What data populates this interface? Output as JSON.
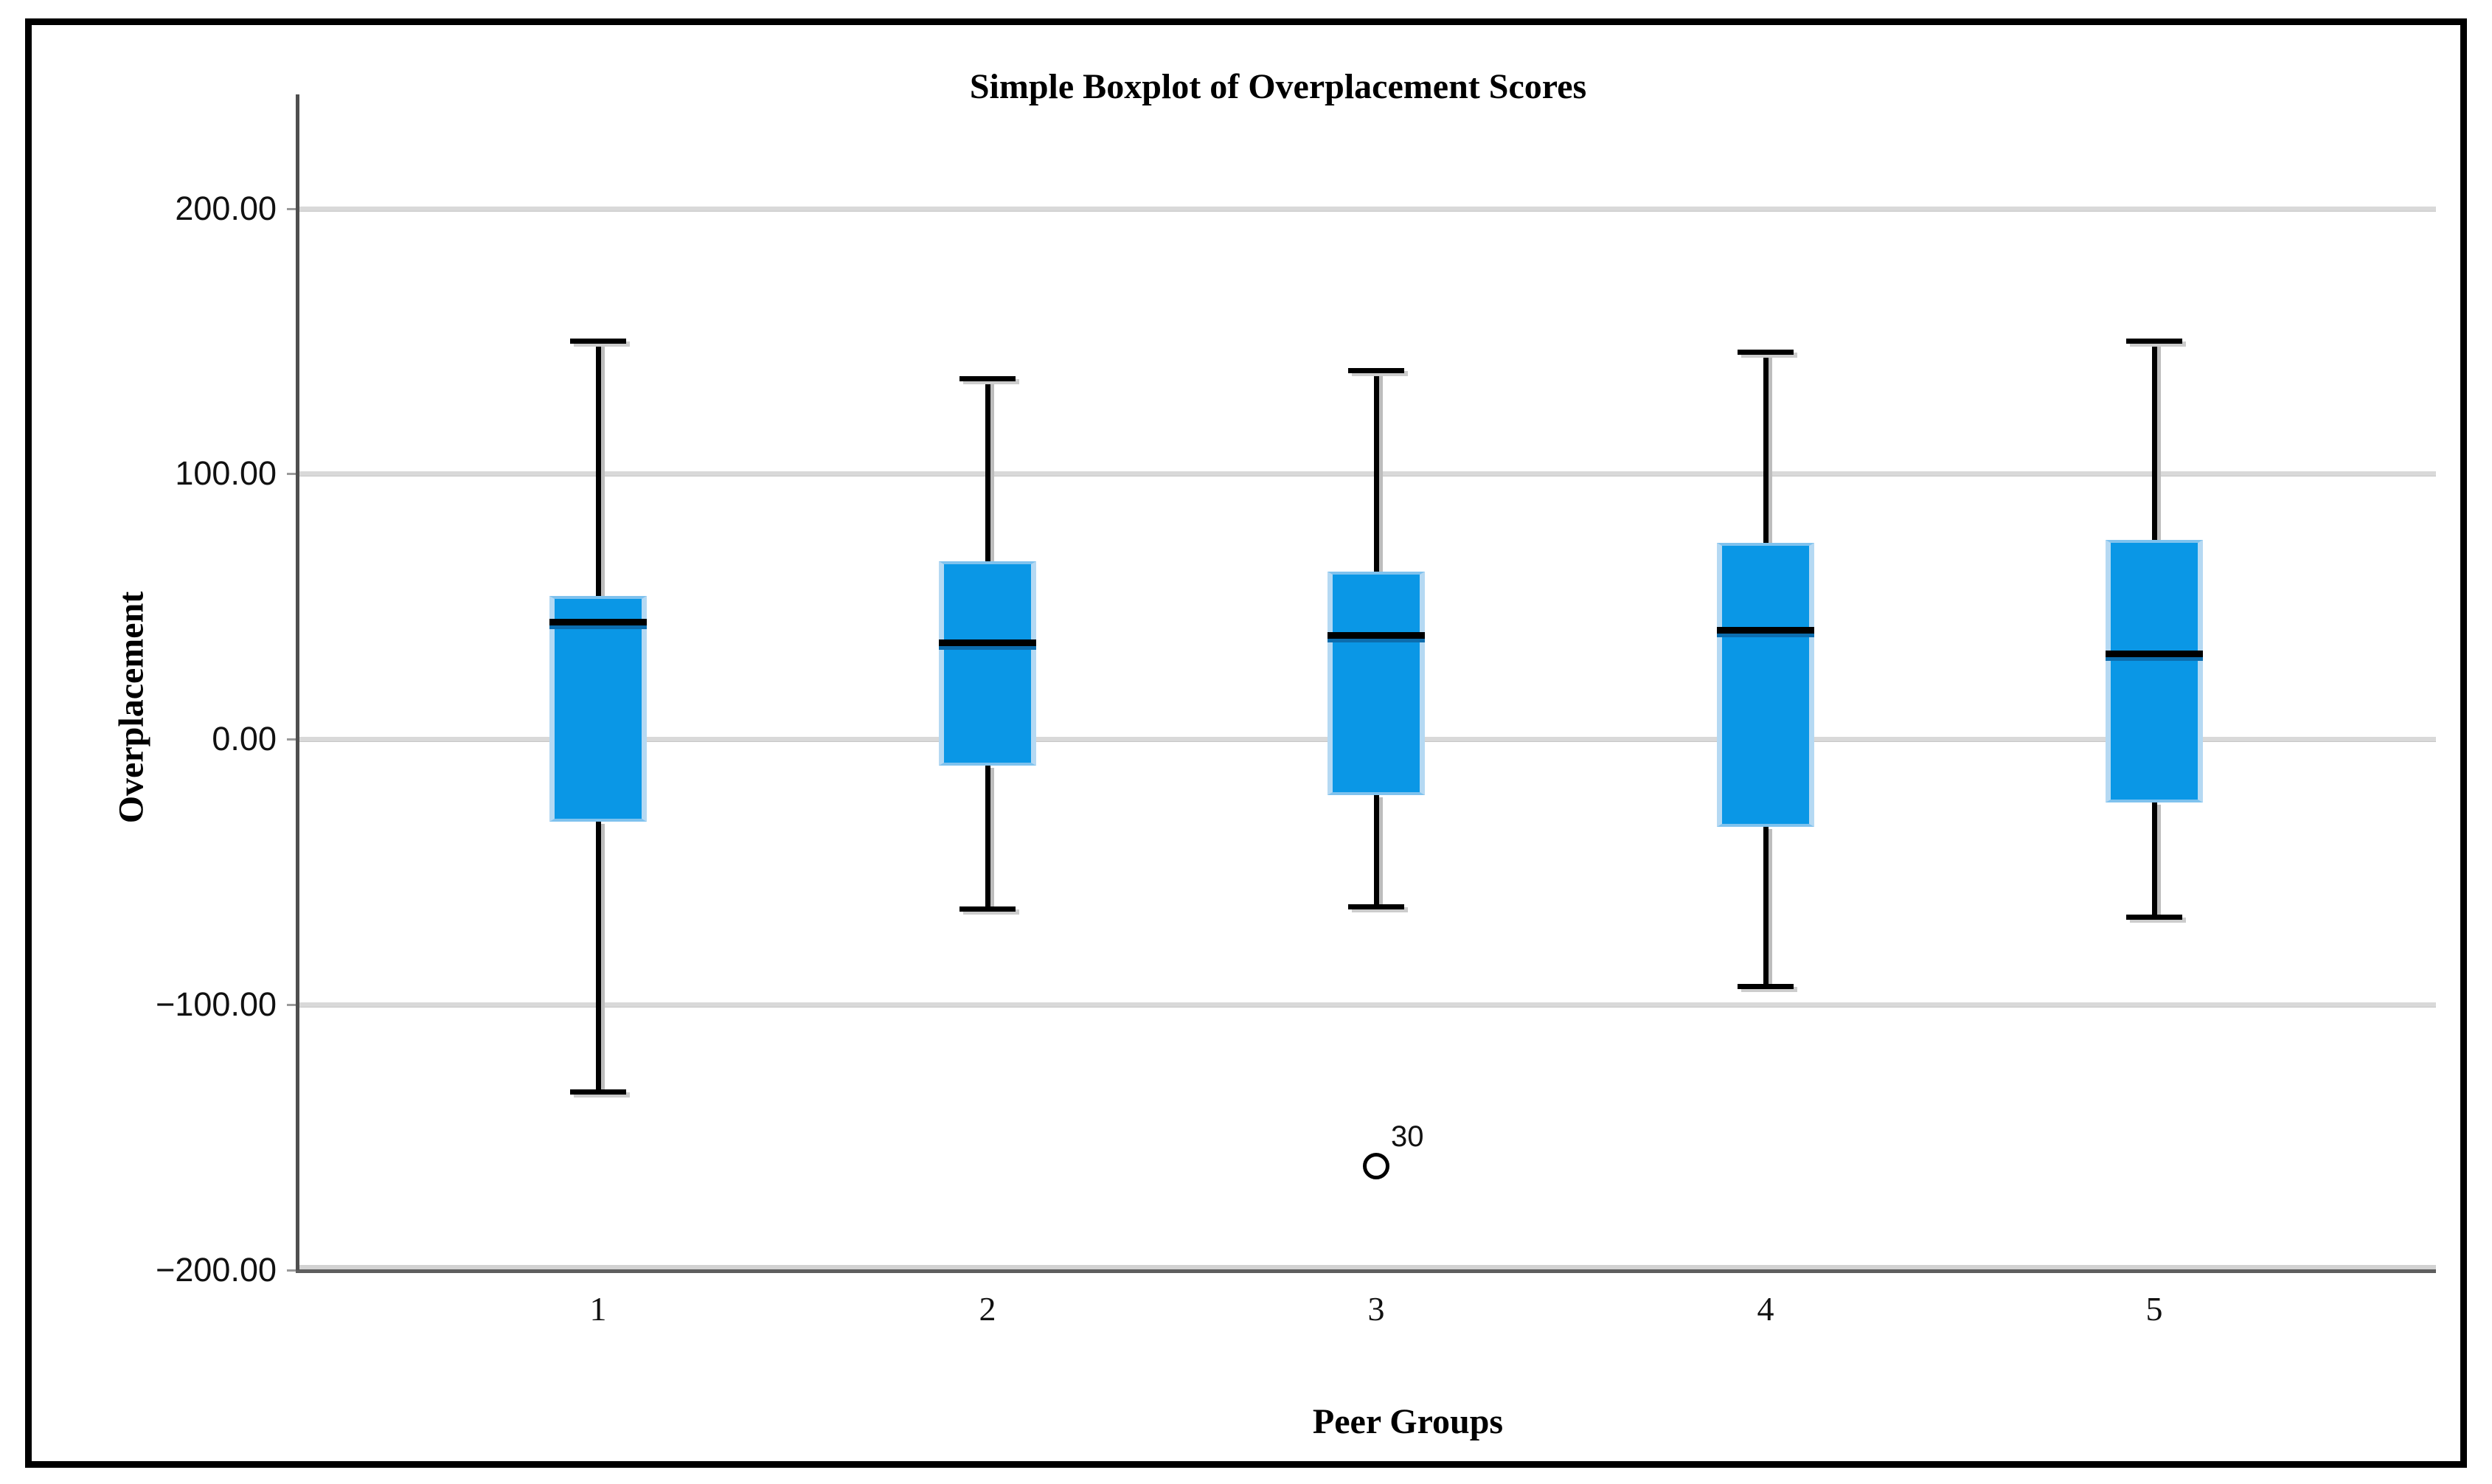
{
  "chart_data": {
    "type": "box",
    "title": "Simple Boxplot of Overplacement Scores",
    "xlabel": "Peer Groups",
    "ylabel": "Overplacement",
    "ylim": [
      -200,
      240
    ],
    "grid": "horizontal",
    "legend": "none",
    "y_ticks": [
      {
        "value": 200,
        "label": "200.00"
      },
      {
        "value": 100,
        "label": "100.00"
      },
      {
        "value": 0,
        "label": "0.00"
      },
      {
        "value": -100,
        "label": "−100.00"
      },
      {
        "value": -200,
        "label": "−200.00"
      }
    ],
    "categories": [
      "1",
      "2",
      "3",
      "4",
      "5"
    ],
    "series": [
      {
        "category": "1",
        "whisker_low": -133,
        "q1": -31,
        "median": 44,
        "q3": 54,
        "whisker_high": 150,
        "outliers": []
      },
      {
        "category": "2",
        "whisker_low": -64,
        "q1": -10,
        "median": 36,
        "q3": 67,
        "whisker_high": 136,
        "outliers": []
      },
      {
        "category": "3",
        "whisker_low": -63,
        "q1": -21,
        "median": 39,
        "q3": 63,
        "whisker_high": 139,
        "outliers": [
          {
            "value": -161,
            "label": "30"
          }
        ]
      },
      {
        "category": "4",
        "whisker_low": -93,
        "q1": -33,
        "median": 41,
        "q3": 74,
        "whisker_high": 146,
        "outliers": []
      },
      {
        "category": "5",
        "whisker_low": -67,
        "q1": -24,
        "median": 32,
        "q3": 75,
        "whisker_high": 150,
        "outliers": []
      }
    ],
    "colors": {
      "box_fill": "#0a97e6",
      "box_edge_light": "#b5d9f3",
      "median": "#000000",
      "median_shadow": "#0c6dae",
      "whisker": "#000000",
      "gridline": "#d9d9d9",
      "axis": "#5e5e5e",
      "text": "#000000"
    }
  }
}
